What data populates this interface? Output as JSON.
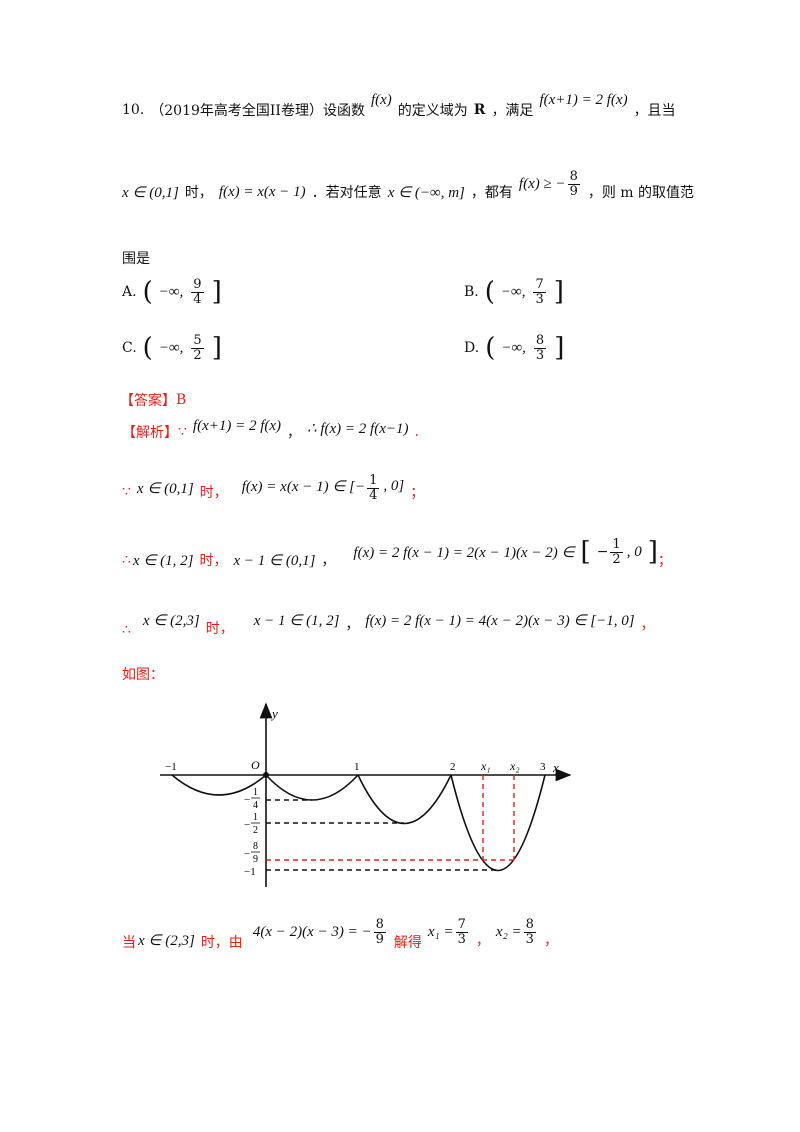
{
  "question": {
    "number": "10.",
    "source": "（2019年高考全国II卷理）设函数",
    "fx": "f(x)",
    "domain_text": "的定义域为",
    "R": "R",
    "satisfy": "，满足",
    "relation": "f(x+1) = 2 f(x)",
    "and_when": "，且当",
    "interval1": "x ∈ (0,1]",
    "when": "时，",
    "def": "f(x) = x(x − 1)",
    "forall": "．若对任意",
    "interval_m": "x ∈ (−∞, m]",
    "have": "，都有",
    "ineq_left": "f(x) ≥ −",
    "ineq_num": "8",
    "ineq_den": "9",
    "ask": "，则 m 的取值范",
    "ask2": "围是"
  },
  "options": [
    {
      "label": "A.",
      "num": "9",
      "den": "4"
    },
    {
      "label": "B.",
      "num": "7",
      "den": "3"
    },
    {
      "label": "C.",
      "num": "5",
      "den": "2"
    },
    {
      "label": "D.",
      "num": "8",
      "den": "3"
    }
  ],
  "option_prefix": "−∞,",
  "answer": {
    "label": "【答案】",
    "value": "B"
  },
  "solution": {
    "label": "【解析】",
    "because": "∵",
    "therefore": "∴",
    "l1a": "f(x+1) = 2 f(x)",
    "l1b": "，",
    "l1c": "∴ f(x) = 2 f(x−1)",
    "l1d": ".",
    "l2a": "x ∈ (0,1]",
    "l2b": "时，",
    "l2c": "f(x) = x(x − 1) ∈ [−",
    "l2num": "1",
    "l2den": "4",
    "l2d": ", 0]",
    "l2e": "；",
    "l3a": "x ∈ (1, 2]",
    "l3b": "时，",
    "l3c": "x − 1 ∈ (0,1]",
    "l3d": "，",
    "l3e": "f(x) = 2 f(x − 1) = 2(x − 1)(x − 2) ∈",
    "l3num": "1",
    "l3den": "2",
    "l3f": "；",
    "l4a": "x ∈ (2,3]",
    "l4b": "时，",
    "l4c": "x − 1 ∈ (1, 2]",
    "l4d": "，",
    "l4e": "f(x) = 2 f(x − 1) = 4(x − 2)(x − 3) ∈ [−1, 0]",
    "l4f": "，",
    "figure_intro": "如图：",
    "l5a": "当",
    "l5b": "x ∈ (2,3]",
    "l5c": "时，由",
    "l5d": "4(x − 2)(x − 3) = −",
    "l5num": "8",
    "l5den": "9",
    "l5e": "解得",
    "l5f": "x₁ =",
    "l5n1": "7",
    "l5d1": "3",
    "l5g": "，",
    "l5h": "x₂ =",
    "l5n2": "8",
    "l5d2": "3",
    "l5i": "，"
  },
  "figure": {
    "y_label": "y",
    "x_label": "x",
    "origin_label": "O",
    "x_ticks": [
      "−1",
      "1",
      "2",
      "3"
    ],
    "x1_label": "x₁",
    "x2_label": "x₂",
    "y_tick_neg1": "−1",
    "minus": "−",
    "q_num": "1",
    "q_den": "4",
    "h_num": "1",
    "h_den": "2",
    "e_num": "8",
    "e_den": "9",
    "red": "#e0201b"
  }
}
